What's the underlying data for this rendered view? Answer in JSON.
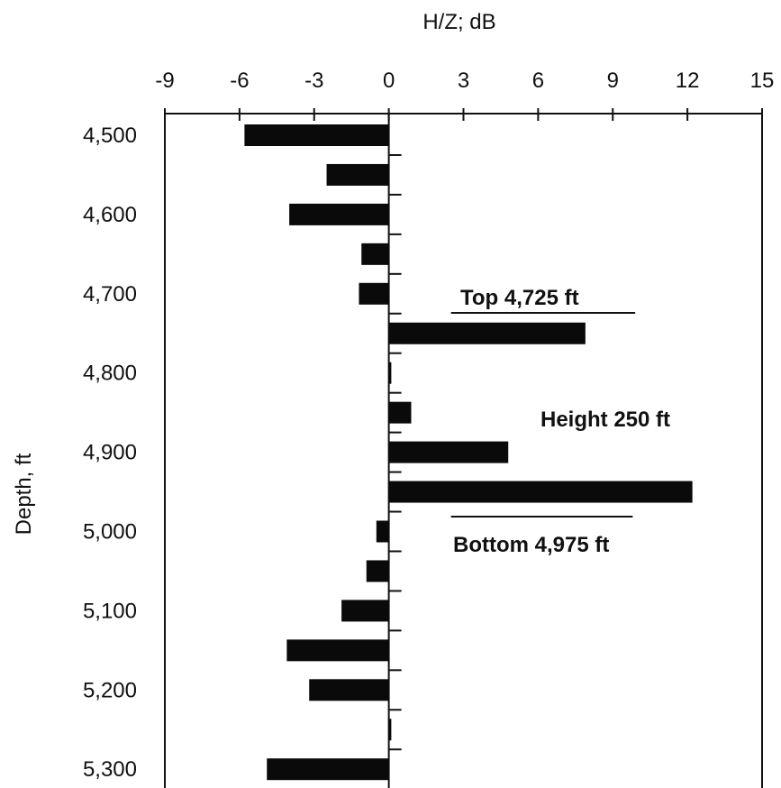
{
  "chart_data": {
    "type": "bar",
    "orientation": "horizontal",
    "xlabel": "H/Z; dB",
    "ylabel": "Depth, ft",
    "xlim": [
      -9,
      15
    ],
    "x_ticks": [
      -9,
      -6,
      -3,
      0,
      3,
      6,
      9,
      12,
      15
    ],
    "x_tick_labels": [
      "-9",
      "-6",
      "-3",
      "0",
      "3",
      "6",
      "9",
      "12",
      "15"
    ],
    "ylim": [
      4475,
      5310
    ],
    "y_ticks": [
      4500,
      4600,
      4700,
      4800,
      4900,
      5000,
      5100,
      5200,
      5300
    ],
    "y_tick_labels": [
      "4,500",
      "4,600",
      "4,700",
      "4,800",
      "4,900",
      "5,000",
      "5,100",
      "5,200",
      "5,300"
    ],
    "depths": [
      4500,
      4550,
      4600,
      4650,
      4700,
      4750,
      4800,
      4850,
      4900,
      4950,
      5000,
      5050,
      5100,
      5150,
      5200,
      5250,
      5300
    ],
    "values": [
      -5.8,
      -2.5,
      -4.0,
      -1.1,
      -1.2,
      7.9,
      0.1,
      0.9,
      4.8,
      12.2,
      -0.5,
      -0.9,
      -1.9,
      -4.1,
      -3.2,
      0.1,
      -4.9
    ],
    "bar_color": "#0a0a0a",
    "grid": false,
    "annotations": {
      "top": {
        "text": "Top 4,725 ft",
        "x_from": 2.5,
        "x_to": 9.9,
        "depth": 4725
      },
      "height": {
        "text": "Height 250 ft"
      },
      "bottom": {
        "text": "Bottom 4,975 ft",
        "x_from": 2.5,
        "x_to": 9.8,
        "depth": 4975
      }
    }
  }
}
